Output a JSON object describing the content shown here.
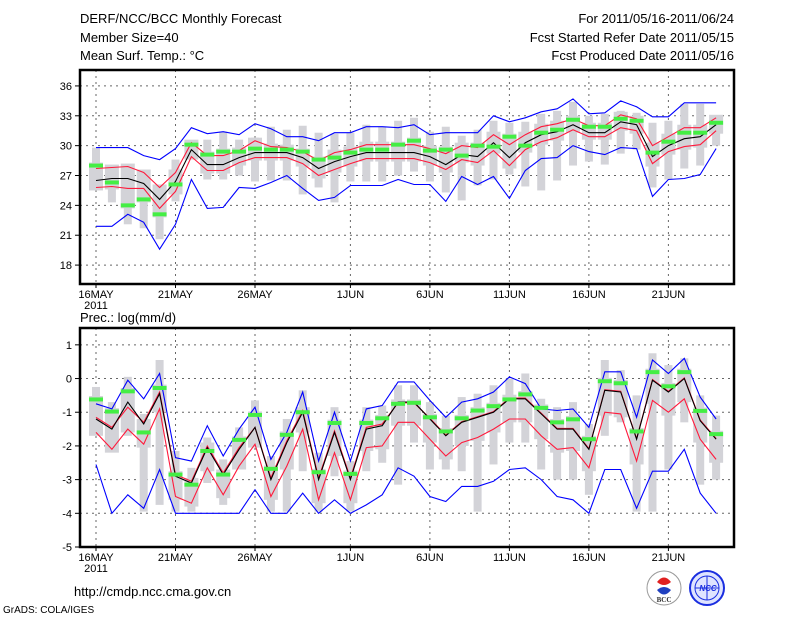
{
  "header": {
    "title": "DERF/NCC/BCC Monthly Forecast",
    "member_size": "Member Size=40",
    "period": "For 2011/05/16-2011/06/24",
    "start_date": "Fcst Started Refer Date 2011/05/15",
    "produced_date": "Fcst Produced Date 2011/05/16"
  },
  "footer": {
    "url": "http://cmdp.ncc.cma.gov.cn",
    "credit": "GrADS: COLA/IGES",
    "logo_bcc": "BCC",
    "logo_ncc": "NCC"
  },
  "colors": {
    "mean": "#000000",
    "quartile": "#ff1a3c",
    "extreme": "#0000ff",
    "observed": "#44ee44",
    "spread": "#d3d3d8"
  },
  "chart_data": [
    {
      "type": "line",
      "title": "Mean Surf. Temp.: °C",
      "xlabel": "",
      "ylabel": "",
      "x_start": "2011-05-16",
      "n_days": 40,
      "x_ticks": [
        {
          "day": 0,
          "label": "16MAY",
          "sub": "2011"
        },
        {
          "day": 5,
          "label": "21MAY"
        },
        {
          "day": 10,
          "label": "26MAY"
        },
        {
          "day": 16,
          "label": "1JUN"
        },
        {
          "day": 21,
          "label": "6JUN"
        },
        {
          "day": 26,
          "label": "11JUN"
        },
        {
          "day": 31,
          "label": "16JUN"
        },
        {
          "day": 36,
          "label": "21JUN"
        }
      ],
      "y_ticks": [
        18,
        21,
        24,
        27,
        30,
        33,
        36
      ],
      "ylim": [
        16.1,
        37.6
      ],
      "grid": true,
      "spread_high": [
        29.8,
        27.8,
        26.4,
        26.6,
        25.2,
        28.6,
        30.4,
        30.6,
        31.4,
        30.6,
        30.8,
        31.9,
        31.6,
        32.0,
        31.3,
        31.2,
        31.3,
        32.1,
        31.9,
        32.5,
        32.8,
        31.4,
        31.9,
        31.0,
        31.6,
        32.5,
        32.3,
        32.4,
        33.2,
        33.5,
        34.4,
        33.0,
        33.2,
        33.5,
        33.3,
        32.3,
        32.5,
        34.2,
        34.2,
        32.8
      ],
      "spread_low": [
        26.1,
        24.3,
        22.1,
        21.7,
        20.6,
        24.4,
        28.6,
        26.6,
        26.6,
        27.0,
        26.4,
        26.5,
        26.5,
        25.1,
        25.8,
        24.3,
        26.4,
        26.4,
        26.4,
        27.0,
        27.4,
        26.4,
        25.3,
        24.5,
        26.0,
        26.6,
        27.1,
        25.9,
        25.5,
        26.5,
        28.0,
        28.4,
        28.1,
        29.2,
        29.6,
        25.8,
        26.6,
        27.7,
        28.0,
        30.0
      ],
      "series": [
        {
          "name": "max",
          "color": "#0000ff",
          "values": [
            29.8,
            29.8,
            29.8,
            29.0,
            28.6,
            29.7,
            31.8,
            31.2,
            31.4,
            31.1,
            32.2,
            31.7,
            30.9,
            30.9,
            30.5,
            31.3,
            31.3,
            31.9,
            31.9,
            31.8,
            32.1,
            31.1,
            31.3,
            31.3,
            31.3,
            33.0,
            32.4,
            32.8,
            33.4,
            33.7,
            34.7,
            33.2,
            33.3,
            34.5,
            33.9,
            32.9,
            32.9,
            34.3,
            34.3,
            34.3
          ]
        },
        {
          "name": "upper",
          "color": "#ff1a3c",
          "values": [
            27.7,
            27.8,
            27.9,
            27.3,
            25.8,
            27.3,
            30.3,
            29.0,
            29.0,
            29.5,
            30.5,
            29.9,
            29.8,
            29.4,
            28.5,
            29.3,
            29.6,
            30.1,
            30.1,
            30.1,
            30.1,
            29.7,
            29.2,
            30.0,
            29.8,
            31.1,
            30.1,
            31.1,
            31.9,
            32.2,
            32.7,
            32.0,
            32.0,
            33.1,
            32.7,
            30.0,
            30.9,
            31.8,
            31.8,
            32.8
          ]
        },
        {
          "name": "mean",
          "color": "#000000",
          "values": [
            26.5,
            26.7,
            26.7,
            26.2,
            24.6,
            26.4,
            29.6,
            28.1,
            28.1,
            28.8,
            29.3,
            29.3,
            29.3,
            28.8,
            27.7,
            28.4,
            28.9,
            29.3,
            29.3,
            29.3,
            29.3,
            28.9,
            28.1,
            29.1,
            28.9,
            30.3,
            28.8,
            30.3,
            31.1,
            31.4,
            32.1,
            31.3,
            31.3,
            32.4,
            32.1,
            28.9,
            30.0,
            30.7,
            30.9,
            32.1
          ]
        },
        {
          "name": "lower",
          "color": "#ff1a3c",
          "values": [
            25.8,
            25.9,
            25.7,
            25.7,
            23.7,
            25.4,
            28.9,
            27.5,
            27.5,
            28.3,
            28.8,
            28.8,
            28.8,
            28.2,
            27.0,
            27.6,
            28.2,
            28.7,
            28.7,
            28.7,
            28.7,
            28.3,
            27.6,
            28.6,
            28.3,
            29.5,
            28.0,
            29.6,
            30.4,
            30.8,
            31.6,
            30.9,
            30.9,
            31.8,
            31.5,
            28.2,
            29.4,
            29.9,
            30.1,
            31.5
          ]
        },
        {
          "name": "min",
          "color": "#0000ff",
          "values": [
            21.9,
            21.9,
            23.1,
            22.3,
            19.6,
            22.1,
            26.6,
            23.7,
            23.8,
            25.8,
            25.7,
            26.3,
            27.0,
            25.7,
            24.5,
            24.8,
            26.0,
            26.0,
            26.0,
            26.6,
            26.1,
            26.1,
            24.4,
            26.9,
            26.1,
            26.9,
            24.7,
            27.5,
            28.7,
            28.8,
            30.0,
            29.4,
            29.1,
            29.8,
            29.7,
            24.9,
            26.6,
            26.7,
            27.1,
            29.7
          ]
        }
      ],
      "observed": [
        28.0,
        26.3,
        24.0,
        24.6,
        23.1,
        26.1,
        30.1,
        29.1,
        29.4,
        29.4,
        29.7,
        29.6,
        29.6,
        29.4,
        28.6,
        28.8,
        29.3,
        29.6,
        29.6,
        30.1,
        30.5,
        29.5,
        29.6,
        29.0,
        30.0,
        29.9,
        30.9,
        30.0,
        31.3,
        31.6,
        32.6,
        31.9,
        31.9,
        32.7,
        32.5,
        29.3,
        30.4,
        31.3,
        31.3,
        32.3
      ]
    },
    {
      "type": "line",
      "title": "Prec.: log(mm/d)",
      "xlabel": "",
      "ylabel": "",
      "x_start": "2011-05-16",
      "n_days": 40,
      "x_ticks": [
        {
          "day": 0,
          "label": "16MAY",
          "sub": "2011"
        },
        {
          "day": 5,
          "label": "21MAY"
        },
        {
          "day": 10,
          "label": "26MAY"
        },
        {
          "day": 16,
          "label": "1JUN"
        },
        {
          "day": 21,
          "label": "6JUN"
        },
        {
          "day": 26,
          "label": "11JUN"
        },
        {
          "day": 31,
          "label": "16JUN"
        },
        {
          "day": 36,
          "label": "21JUN"
        }
      ],
      "y_ticks": [
        -5,
        -4,
        -3,
        -2,
        -1,
        0,
        1
      ],
      "ylim": [
        -5,
        1.5
      ],
      "grid": true,
      "spread_high": [
        -0.25,
        -0.7,
        0.05,
        -1.05,
        0.55,
        -2.15,
        -2.65,
        -1.75,
        -2.4,
        -1.45,
        -0.65,
        -2.3,
        -1.2,
        -0.35,
        -2.2,
        -0.85,
        -2.45,
        -0.85,
        -0.8,
        -0.2,
        -0.2,
        -0.7,
        -1.1,
        -0.55,
        -0.45,
        -0.2,
        0.0,
        0.15,
        -0.6,
        -0.85,
        -0.7,
        -1.35,
        0.55,
        0.25,
        -0.5,
        0.75,
        0.4,
        0.6,
        -0.5,
        -1.1
      ],
      "spread_low": [
        -1.45,
        -1.55,
        -1.7,
        -3.95,
        -3.75,
        -3.95,
        -3.95,
        -3.1,
        -3.75,
        -2.6,
        -2.0,
        -3.95,
        -3.95,
        -2.75,
        -3.95,
        -2.9,
        -3.95,
        -2.75,
        -2.5,
        -3.15,
        -1.9,
        -2.7,
        -2.7,
        -2.75,
        -3.95,
        -2.55,
        -1.9,
        -1.9,
        -2.7,
        -3.0,
        -3.0,
        -3.45,
        -1.7,
        -1.3,
        -3.95,
        -3.95,
        -2.7,
        -1.3,
        -3.15,
        -3.0
      ],
      "series": [
        {
          "name": "max",
          "color": "#0000ff",
          "values": [
            -0.75,
            -0.9,
            -0.05,
            -0.6,
            0.15,
            -2.35,
            -2.45,
            -1.4,
            -2.3,
            -1.5,
            -0.85,
            -2.4,
            -1.6,
            -0.4,
            -2.45,
            -1.0,
            -2.45,
            -0.9,
            -0.8,
            -0.1,
            -0.1,
            -0.65,
            -1.15,
            -0.7,
            -0.6,
            -0.4,
            0.05,
            -0.15,
            -0.9,
            -0.95,
            -0.9,
            -1.45,
            0.2,
            0.2,
            -1.15,
            0.55,
            0.15,
            0.6,
            -0.55,
            -1.2
          ]
        },
        {
          "name": "upper",
          "color": "#ff1a3c",
          "values": [
            -1.15,
            -1.45,
            -0.85,
            -1.3,
            -0.4,
            -2.85,
            -3.05,
            -2.0,
            -2.8,
            -2.05,
            -1.45,
            -2.95,
            -1.85,
            -0.95,
            -2.95,
            -1.55,
            -2.95,
            -1.45,
            -1.35,
            -0.72,
            -0.72,
            -1.18,
            -1.68,
            -1.28,
            -1.13,
            -0.98,
            -0.58,
            -0.58,
            -1.03,
            -1.48,
            -1.48,
            -2.08,
            -0.33,
            -0.38,
            -1.78,
            -0.03,
            -0.38,
            0.02,
            -1.23,
            -1.78
          ]
        },
        {
          "name": "mean",
          "color": "#000000",
          "values": [
            -1.2,
            -1.5,
            -0.7,
            -1.35,
            -0.45,
            -2.9,
            -3.1,
            -2.05,
            -2.85,
            -2.1,
            -1.45,
            -3.0,
            -1.9,
            -1.0,
            -3.0,
            -1.6,
            -3.0,
            -1.5,
            -1.4,
            -0.7,
            -0.7,
            -1.2,
            -1.7,
            -1.3,
            -1.15,
            -1.0,
            -0.6,
            -0.6,
            -1.05,
            -1.5,
            -1.5,
            -2.1,
            -0.35,
            -0.4,
            -1.8,
            -0.05,
            -0.4,
            0.0,
            -1.25,
            -1.8
          ]
        },
        {
          "name": "lower",
          "color": "#ff1a3c",
          "values": [
            -1.6,
            -2.1,
            -1.5,
            -1.95,
            -0.9,
            -3.5,
            -3.7,
            -2.65,
            -3.45,
            -2.6,
            -1.95,
            -3.5,
            -2.6,
            -1.5,
            -3.6,
            -2.2,
            -3.6,
            -2.05,
            -2.0,
            -1.3,
            -1.3,
            -1.8,
            -2.3,
            -1.9,
            -1.75,
            -1.5,
            -1.2,
            -1.2,
            -1.7,
            -2.1,
            -2.05,
            -2.65,
            -1.0,
            -1.05,
            -2.45,
            -0.65,
            -1.0,
            -0.6,
            -1.8,
            -2.4
          ]
        },
        {
          "name": "min",
          "color": "#0000ff",
          "values": [
            -2.55,
            -4.0,
            -3.45,
            -3.85,
            -2.7,
            -4.0,
            -4.0,
            -4.0,
            -4.0,
            -4.0,
            -3.3,
            -4.0,
            -4.0,
            -3.4,
            -4.0,
            -3.6,
            -4.0,
            -3.75,
            -3.45,
            -2.65,
            -2.9,
            -3.5,
            -3.65,
            -3.2,
            -3.2,
            -3.05,
            -2.7,
            -2.65,
            -3.0,
            -3.5,
            -3.6,
            -4.0,
            -2.7,
            -2.7,
            -3.85,
            -2.75,
            -2.75,
            -2.1,
            -3.4,
            -4.0
          ]
        }
      ],
      "observed": [
        -0.62,
        -0.98,
        -0.38,
        -1.6,
        -0.28,
        -2.85,
        -3.15,
        -2.15,
        -2.85,
        -1.82,
        -1.08,
        -2.68,
        -1.67,
        -1.0,
        -2.78,
        -1.32,
        -2.83,
        -1.32,
        -1.18,
        -0.75,
        -0.72,
        -1.15,
        -1.57,
        -1.18,
        -0.95,
        -0.82,
        -0.62,
        -0.47,
        -0.87,
        -1.3,
        -1.21,
        -1.8,
        -0.08,
        -0.14,
        -1.57,
        0.19,
        -0.23,
        0.19,
        -0.96,
        -1.65
      ]
    }
  ]
}
